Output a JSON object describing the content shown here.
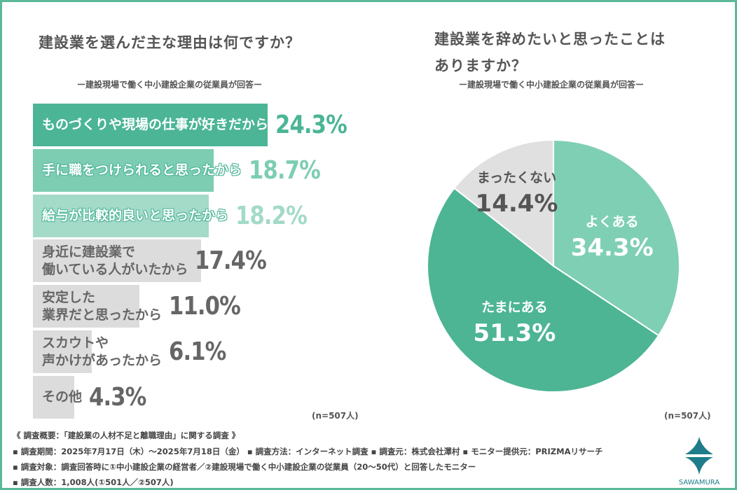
{
  "chart_data": [
    {
      "type": "bar",
      "orientation": "horizontal",
      "title": "建設業を選んだ主な理由は何ですか？",
      "subtitle": "ー建設現場で働く中小建設企業の従業員が回答ー",
      "n_label": "(n=507人)",
      "categories": [
        "ものづくりや現場の仕事が好きだから",
        "手に職をつけられると思ったから",
        "給与が比較的良いと思ったから",
        "身近に建設業で\n働いている人がいたから",
        "安定した\n業界だと思ったから",
        "スカウトや\n声かけがあったから",
        "その他"
      ],
      "values": [
        24.3,
        18.7,
        18.2,
        17.4,
        11.0,
        6.1,
        4.3
      ],
      "labels": [
        "24.3%",
        "18.7%",
        "18.2%",
        "17.4%",
        "11.0%",
        "6.1%",
        "4.3%"
      ],
      "colors": [
        "#4bb596",
        "#7dcdb3",
        "#a3dac8",
        "#dcdcdc",
        "#dcdcdc",
        "#dcdcdc",
        "#dcdcdc"
      ],
      "label_colors": [
        "#4bb596",
        "#7dcdb3",
        "#a3dac8",
        "#666666",
        "#666666",
        "#666666",
        "#666666"
      ]
    },
    {
      "type": "pie",
      "title_lines": [
        "建設業を辞めたいと思ったことは",
        "ありますか？"
      ],
      "subtitle": "ー建設現場で働く中小建設企業の従業員が回答ー",
      "n_label": "(n=507人)",
      "slices": [
        {
          "label": "よくある",
          "value": 34.3,
          "text": "34.3%",
          "color": "#7fcfb4",
          "text_color": "#ffffff"
        },
        {
          "label": "たまにある",
          "value": 51.3,
          "text": "51.3%",
          "color": "#4db594",
          "text_color": "#ffffff"
        },
        {
          "label": "まったくない",
          "value": 14.4,
          "text": "14.4%",
          "color": "#e0e0e0",
          "text_color": "#555555"
        }
      ]
    }
  ],
  "footer": {
    "lines": [
      "《 調査概要：「建設業の人材不足と離職理由」に関する調査 》",
      "▪ 調査期間：2025年7月17日（木）〜2025年7月18日（金）  ▪ 調査方法：インターネット調査     ▪ 調査元：株式会社澤村     ▪ モニター提供元：PRIZMAリサーチ",
      "▪ 調査対象：調査回答時に①中小建設企業の経営者／②建設現場で働く中小建設企業の従業員（20〜50代）と回答したモニター",
      "▪ 調査人数：1,008人(①501人／②507人)"
    ],
    "logo": "SAWAMURA"
  }
}
